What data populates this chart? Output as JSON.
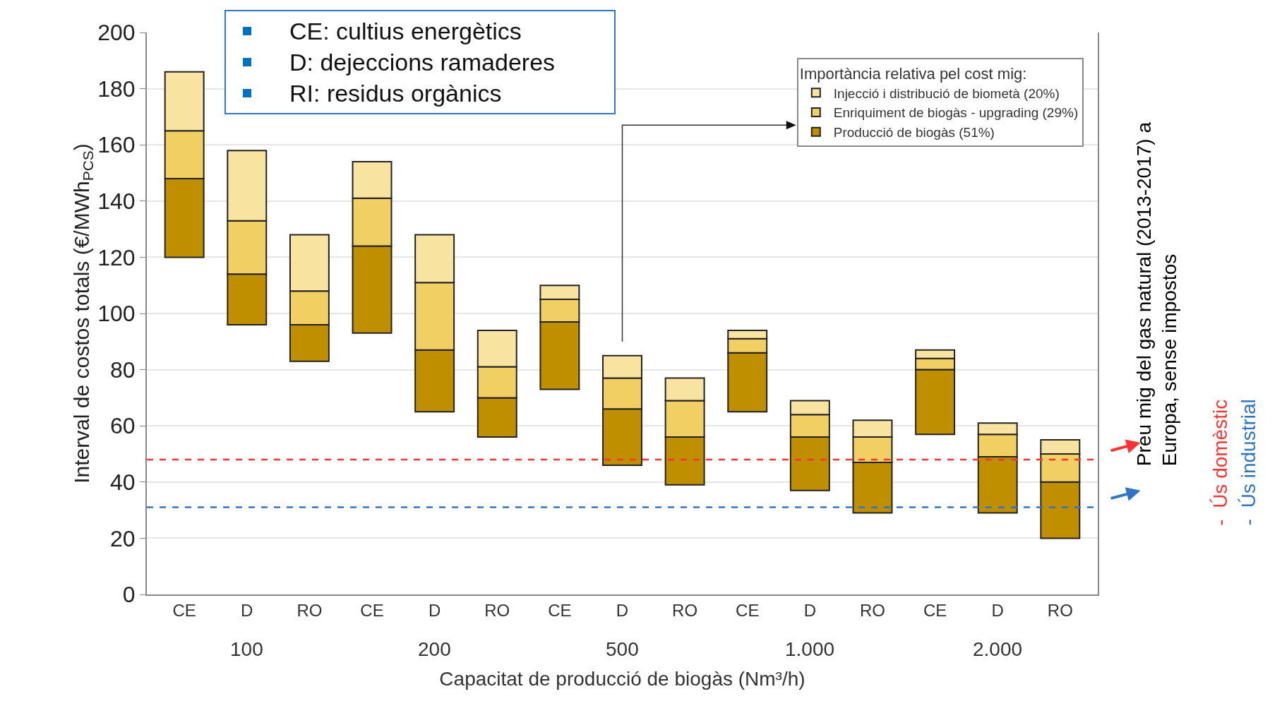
{
  "chart_data": {
    "type": "bar",
    "categories": [
      "CE",
      "D",
      "RO",
      "CE",
      "D",
      "RO",
      "CE",
      "D",
      "RO",
      "CE",
      "D",
      "RO",
      "CE",
      "D",
      "RO"
    ],
    "series": [
      {
        "name": "Producció de biogàs (51%)",
        "color": "#bf8f00",
        "base": [
          120,
          96,
          83,
          93,
          65,
          56,
          73,
          46,
          39,
          65,
          37,
          29,
          57,
          29,
          20
        ],
        "values": [
          28,
          18,
          13,
          31,
          22,
          14,
          24,
          20,
          17,
          21,
          19,
          18,
          23,
          20,
          20
        ]
      },
      {
        "name": "Enriquiment de biogàs - upgrading (29%)",
        "color": "#f2cf62",
        "base": [
          148,
          114,
          96,
          124,
          87,
          70,
          97,
          66,
          56,
          86,
          56,
          47,
          80,
          49,
          40
        ],
        "values": [
          17,
          19,
          12,
          17,
          24,
          11,
          8,
          11,
          13,
          5,
          8,
          9,
          4,
          8,
          10
        ]
      },
      {
        "name": "Injecció i distribució de biometà (20%)",
        "color": "#f8e3a0",
        "base": [
          165,
          133,
          108,
          141,
          111,
          81,
          105,
          77,
          69,
          91,
          64,
          56,
          84,
          57,
          50
        ],
        "values": [
          21,
          25,
          20,
          13,
          17,
          13,
          5,
          8,
          8,
          3,
          5,
          6,
          3,
          4,
          5
        ]
      }
    ],
    "legend_title": "Importància relativa pel cost mig:",
    "legend": "top right",
    "ylabel": "Interval de costos totals (€/MWh$_{PCS}$)",
    "xlabel": "Capacitat de producció de biogàs (Nm³/h)",
    "ylim": [
      0,
      200
    ],
    "yticks": [
      0,
      20,
      40,
      60,
      80,
      100,
      120,
      140,
      160,
      180,
      200
    ],
    "grid": "y",
    "ref_lines": [
      {
        "axis": "y",
        "value": 48,
        "label": "-  Ús domèstic",
        "color": "#ff3333",
        "line_style": "dashed"
      },
      {
        "axis": "y",
        "value": 31,
        "label": "-  Ús industrial",
        "color": "#2e75c8",
        "line_style": "dashed"
      }
    ],
    "annotations": [
      "100",
      "200",
      "500",
      "1.000",
      "2.000",
      "CE: cultius energètics",
      "D: dejeccions ramaderes",
      "RI: residus orgànics",
      "Preu mig del gas natural (2013-2017) a Europa, sense impostos"
    ]
  }
}
